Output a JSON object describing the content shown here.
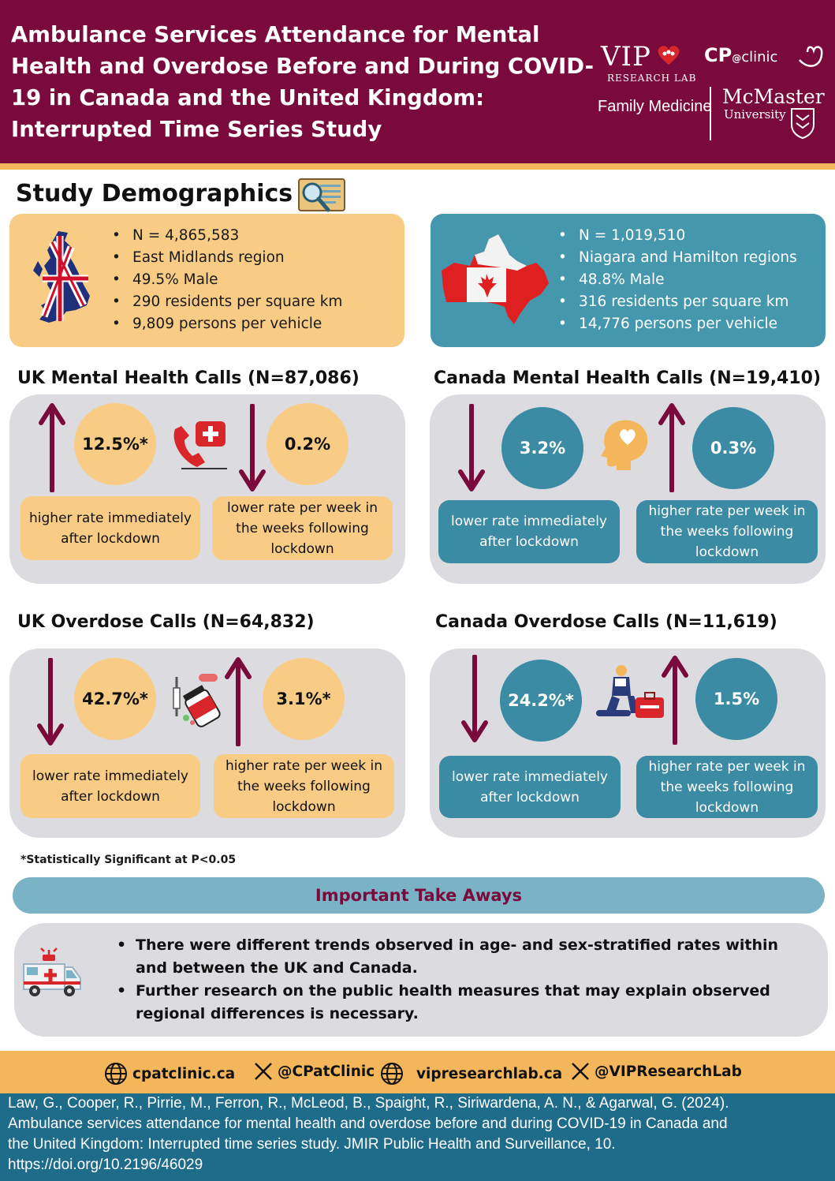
{
  "header": {
    "title": "Ambulance Services Attendance for Mental Health and Overdose Before and During COVID-19 in Canada and the United Kingdom: Interrupted Time Series Study",
    "logos": {
      "vip": "VIP",
      "vip_sub": "RESEARCH LAB",
      "cp": "CP",
      "cp_at": "@",
      "cp_clinic": "clinic",
      "family_medicine": "Family Medicine",
      "mcmaster": "McMaster",
      "university": "University"
    }
  },
  "demographics": {
    "title": "Study Demographics",
    "uk": [
      "N = 4,865,583",
      "East Midlands region",
      "49.5% Male",
      "290 residents per square km",
      "9,809 persons per vehicle"
    ],
    "canada": [
      "N = 1,019,510",
      "Niagara and Hamilton regions",
      "48.8% Male",
      "316 residents per square km",
      "14,776 persons per vehicle"
    ]
  },
  "panels": {
    "uk_mental": {
      "title": "UK Mental Health Calls (N=87,086)",
      "left_value": "12.5%*",
      "left_label": "higher rate immediately after lockdown",
      "right_value": "0.2%",
      "right_label": "lower rate per week in the weeks following lockdown"
    },
    "ca_mental": {
      "title": "Canada Mental Health Calls (N=19,410)",
      "left_value": "3.2%",
      "left_label": "lower rate immediately after lockdown",
      "right_value": "0.3%",
      "right_label": "higher rate per week in the weeks following lockdown"
    },
    "uk_overdose": {
      "title": "UK Overdose Calls (N=64,832)",
      "left_value": "42.7%*",
      "left_label": "lower rate immediately after lockdown",
      "right_value": "3.1%*",
      "right_label": "higher rate per week in the weeks following lockdown"
    },
    "ca_overdose": {
      "title": "Canada Overdose Calls (N=11,619)",
      "left_value": "24.2%*",
      "left_label": "lower rate immediately after lockdown",
      "right_value": "1.5%",
      "right_label": "higher rate per week in the weeks following lockdown"
    }
  },
  "footnote": "*Statistically Significant at P<0.05",
  "takeaways": {
    "title": "Important Take Aways",
    "items": [
      "There were different trends observed in age- and sex-stratified rates within and between the UK and Canada.",
      "Further research on the public health measures that may explain observed regional differences is necessary."
    ]
  },
  "social": {
    "site1": "cpatclinic.ca",
    "x1": "@CPatClinic",
    "site2": "vipresearchlab.ca",
    "x2": "@VIPResearchLab"
  },
  "citation": {
    "line1": "Law, G., Cooper, R., Pirrie, M., Ferron, R., McLeod, B., Spaight, R., Siriwardena, A. N., & Agarwal, G. (2024).",
    "line2": "Ambulance services attendance for mental health and overdose before and during COVID-19 in Canada and",
    "line3": "the United Kingdom: Interrupted time series study. JMIR Public Health and Surveillance, 10.",
    "line4": "https://doi.org/10.2196/46029"
  },
  "colors": {
    "maroon": "#7a0a3c",
    "gold": "#f4b65a",
    "peach": "#f9cc85",
    "teal": "#3a8ba3",
    "grey_panel": "#dcdce0",
    "citation_blue": "#1e6b8a"
  },
  "icons": [
    "magnifier-icon",
    "uk-map-icon",
    "canada-map-icon",
    "phone-medical-icon",
    "head-heart-icon",
    "pills-syringe-icon",
    "paramedic-icon",
    "ambulance-icon",
    "globe-icon",
    "x-logo-icon",
    "arrow-up-icon",
    "arrow-down-icon"
  ]
}
